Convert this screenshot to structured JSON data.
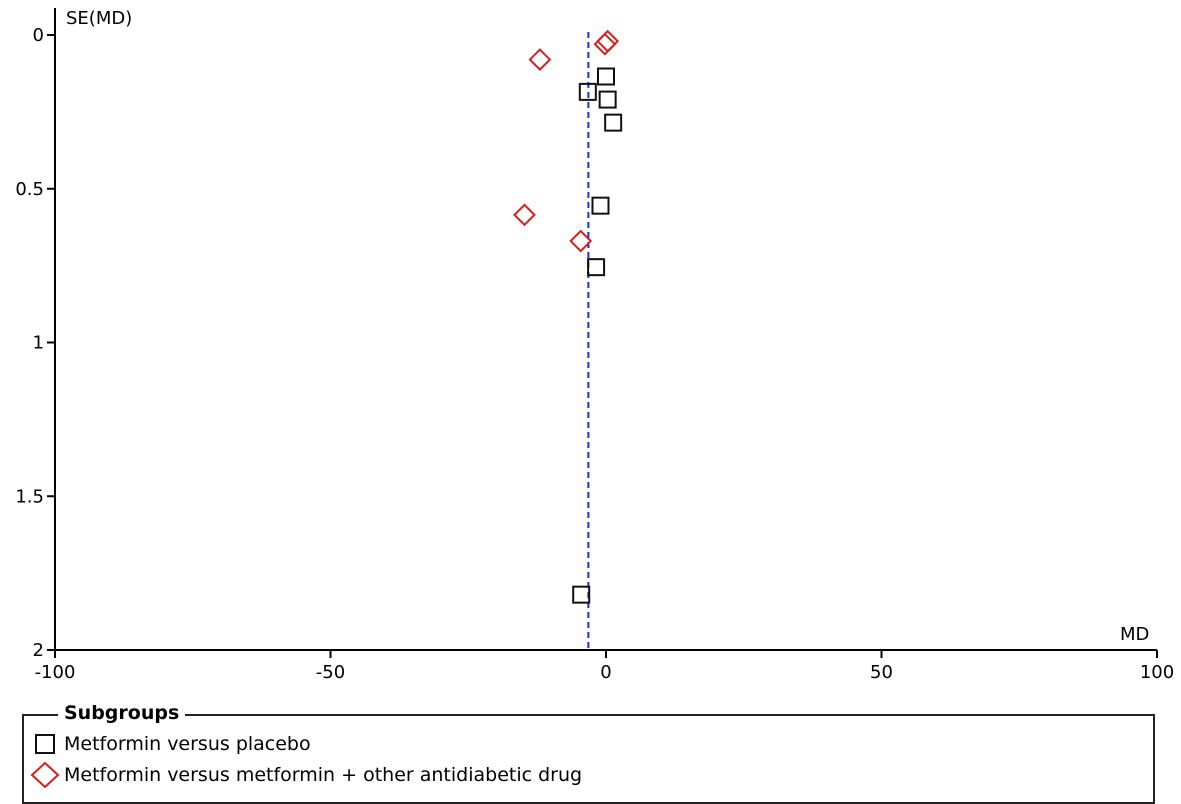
{
  "chart_data": {
    "type": "scatter",
    "title": "",
    "xlabel": "MD",
    "ylabel": "SE(MD)",
    "xlim": [
      -100,
      100
    ],
    "ylim": [
      0,
      2
    ],
    "y_inverted": true,
    "x_ticks": [
      "-100",
      "-50",
      "0",
      "50",
      "100"
    ],
    "x_tick_values": [
      -100,
      -50,
      0,
      50,
      100
    ],
    "y_ticks": [
      "0",
      "0.5",
      "1",
      "1.5",
      "2"
    ],
    "y_tick_values": [
      0,
      0.5,
      1,
      1.5,
      2
    ],
    "reference_line": {
      "x": -3.2,
      "style": "dashed",
      "color": "#1f2fd6"
    },
    "grid": false,
    "legend_position": "bottom",
    "series": [
      {
        "name": "Metformin versus placebo",
        "marker": "square",
        "color": "#111111",
        "points": [
          {
            "x": 0.0,
            "y": 0.135
          },
          {
            "x": -3.3,
            "y": 0.185
          },
          {
            "x": 0.3,
            "y": 0.21
          },
          {
            "x": 1.3,
            "y": 0.285
          },
          {
            "x": -1.0,
            "y": 0.555
          },
          {
            "x": -1.8,
            "y": 0.755
          },
          {
            "x": -4.5,
            "y": 1.82
          }
        ]
      },
      {
        "name": "Metformin versus metformin + other antidiabetic drug",
        "marker": "diamond",
        "color": "#d62020",
        "points": [
          {
            "x": 0.3,
            "y": 0.02
          },
          {
            "x": -0.2,
            "y": 0.03
          },
          {
            "x": -12.0,
            "y": 0.08
          },
          {
            "x": -14.8,
            "y": 0.585
          },
          {
            "x": -4.6,
            "y": 0.67
          }
        ]
      }
    ]
  },
  "legend": {
    "title": "Subgroups",
    "items": [
      "Metformin versus placebo",
      "Metformin versus metformin + other antidiabetic drug"
    ]
  }
}
